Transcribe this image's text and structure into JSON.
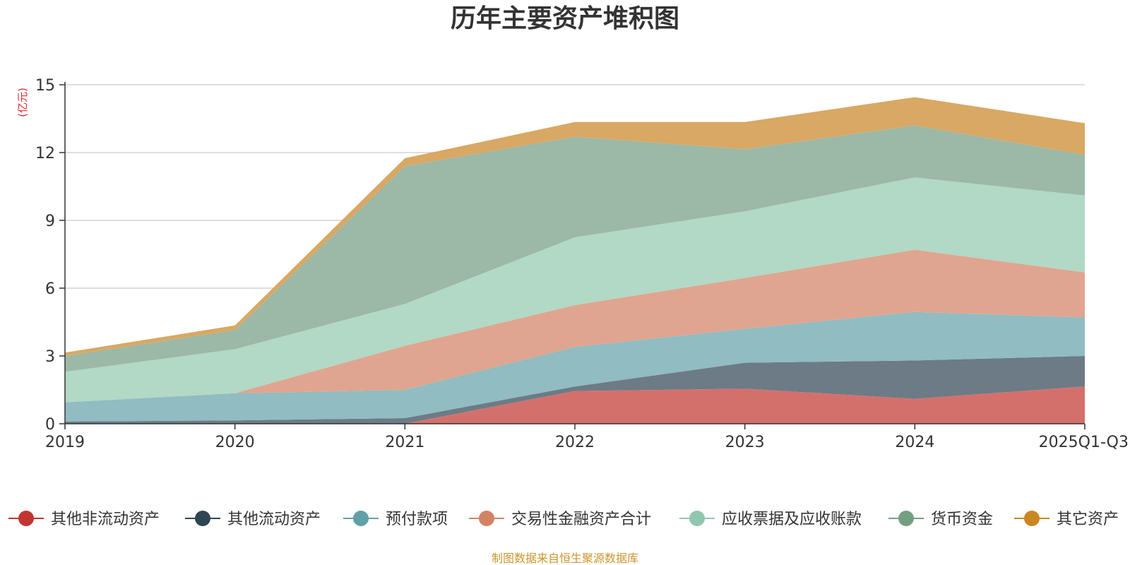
{
  "chart_data": {
    "type": "area",
    "stacked": true,
    "title": "历年主要资产堆积图",
    "unit_label": "(亿元)",
    "source": "制图数据来自恒生聚源数据库",
    "categories": [
      "2019",
      "2020",
      "2021",
      "2022",
      "2023",
      "2024",
      "2025Q1-Q3"
    ],
    "ylim": [
      0,
      15
    ],
    "yticks": [
      0,
      3,
      6,
      9,
      12,
      15
    ],
    "grid": true,
    "legend_position": "bottom",
    "series": [
      {
        "name": "其他非流动资产",
        "color": "#c23531",
        "fill": "#d4706c",
        "values": [
          0.0,
          0.0,
          0.0,
          1.45,
          1.55,
          1.1,
          1.65
        ]
      },
      {
        "name": "其他流动资产",
        "color": "#2f4554",
        "fill": "#6d7b86",
        "values": [
          0.1,
          0.15,
          0.25,
          0.2,
          1.15,
          1.7,
          1.35
        ]
      },
      {
        "name": "预付款项",
        "color": "#61a0a8",
        "fill": "#90bcc2",
        "values": [
          0.85,
          1.2,
          1.25,
          1.75,
          1.5,
          2.15,
          1.7
        ]
      },
      {
        "name": "交易性金融资产合计",
        "color": "#d48265",
        "fill": "#e0a590",
        "values": [
          0.0,
          0.0,
          1.95,
          1.85,
          2.25,
          2.75,
          2.0
        ]
      },
      {
        "name": "应收票据及应收账款",
        "color": "#91c7ae",
        "fill": "#b2d8c6",
        "values": [
          1.35,
          1.95,
          1.85,
          3.0,
          2.95,
          3.2,
          3.4
        ]
      },
      {
        "name": "货币资金",
        "color": "#749f83",
        "fill": "#9cb8a6",
        "values": [
          0.7,
          0.85,
          6.1,
          4.45,
          2.75,
          2.3,
          1.8
        ]
      },
      {
        "name": "其它资产",
        "color": "#ca8622",
        "fill": "#d8a864",
        "values": [
          0.15,
          0.2,
          0.35,
          0.65,
          1.2,
          1.25,
          1.4
        ]
      }
    ]
  }
}
